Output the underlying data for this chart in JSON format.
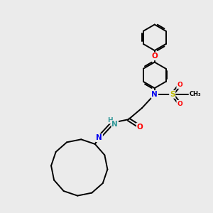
{
  "background_color": "#ebebeb",
  "bond_color": "#000000",
  "atom_colors": {
    "N": "#0000ee",
    "O": "#ff0000",
    "S": "#bbbb00",
    "NH": "#339999",
    "C": "#000000"
  },
  "figsize": [
    3.0,
    3.0
  ],
  "dpi": 100
}
